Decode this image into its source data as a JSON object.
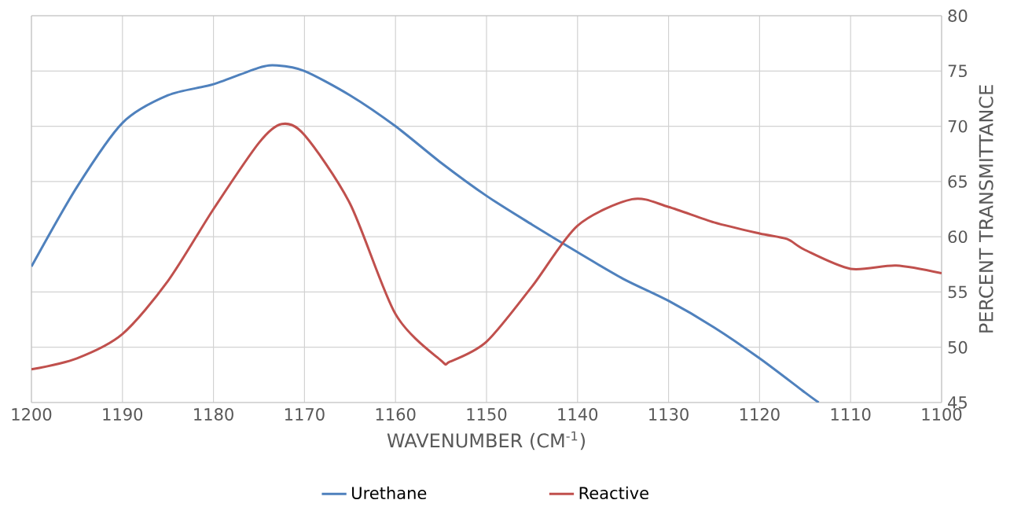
{
  "chart_data": {
    "type": "line",
    "xlabel": "WAVENUMBER (CM$^{-1}$)",
    "ylabel": "PERCENT TRANSMITTANCE",
    "xlim": [
      1200,
      1100
    ],
    "xticks": [
      1200,
      1190,
      1180,
      1170,
      1160,
      1150,
      1140,
      1130,
      1120,
      1110,
      1100
    ],
    "ylim": [
      45,
      80
    ],
    "yticks": [
      45,
      50,
      55,
      60,
      65,
      70,
      75,
      80
    ],
    "grid": true,
    "legend": "bottom",
    "marker": "none",
    "line_style": "solid",
    "series": [
      {
        "name": "Urethane",
        "color": "#4f81bd",
        "x": [
          1200,
          1195,
          1190,
          1185,
          1180,
          1175,
          1173,
          1170,
          1165,
          1160,
          1155,
          1150,
          1145,
          1140,
          1135,
          1130,
          1125,
          1120,
          1115,
          1113.5
        ],
        "values": [
          57.3,
          64.5,
          70.3,
          72.8,
          73.8,
          75.3,
          75.5,
          75.0,
          72.8,
          70.0,
          66.7,
          63.7,
          61.1,
          58.6,
          56.2,
          54.2,
          51.8,
          49.0,
          45.9,
          45.0
        ]
      },
      {
        "name": "Reactive",
        "color": "#c0504d",
        "x": [
          1200,
          1195,
          1190,
          1185,
          1180,
          1175,
          1172.5,
          1170,
          1165,
          1160,
          1155,
          1154,
          1150,
          1145,
          1140,
          1134,
          1130,
          1125,
          1120,
          1117,
          1115,
          1110,
          1105,
          1100
        ],
        "values": [
          48.0,
          49.0,
          51.2,
          56.0,
          62.5,
          68.5,
          70.2,
          69.2,
          63.0,
          53.0,
          48.8,
          48.7,
          50.5,
          55.5,
          61.0,
          63.4,
          62.7,
          61.3,
          60.3,
          59.8,
          58.8,
          57.1,
          57.4,
          56.7
        ]
      }
    ]
  }
}
